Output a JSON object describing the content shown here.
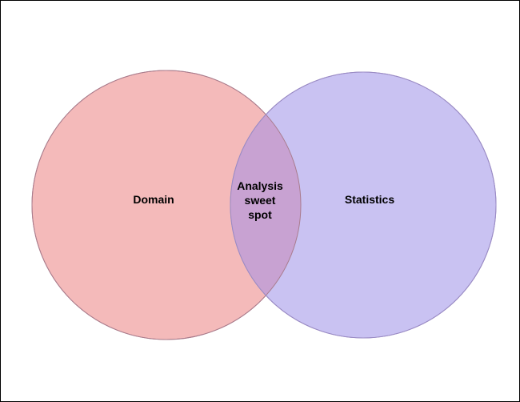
{
  "diagram": {
    "sets": [
      {
        "id": "domain",
        "label": "Domain",
        "fill": "#f4baba",
        "stroke": "#b98484"
      },
      {
        "id": "statistics",
        "label": "Statistics",
        "fill": "#c9c2f2",
        "stroke": "#9a8bc4"
      }
    ],
    "overlap": {
      "label_lines": [
        "Analysis",
        "sweet",
        "spot"
      ],
      "fill": "#c8a2d2"
    },
    "border_color": "#000000",
    "background_color": "#ffffff"
  }
}
